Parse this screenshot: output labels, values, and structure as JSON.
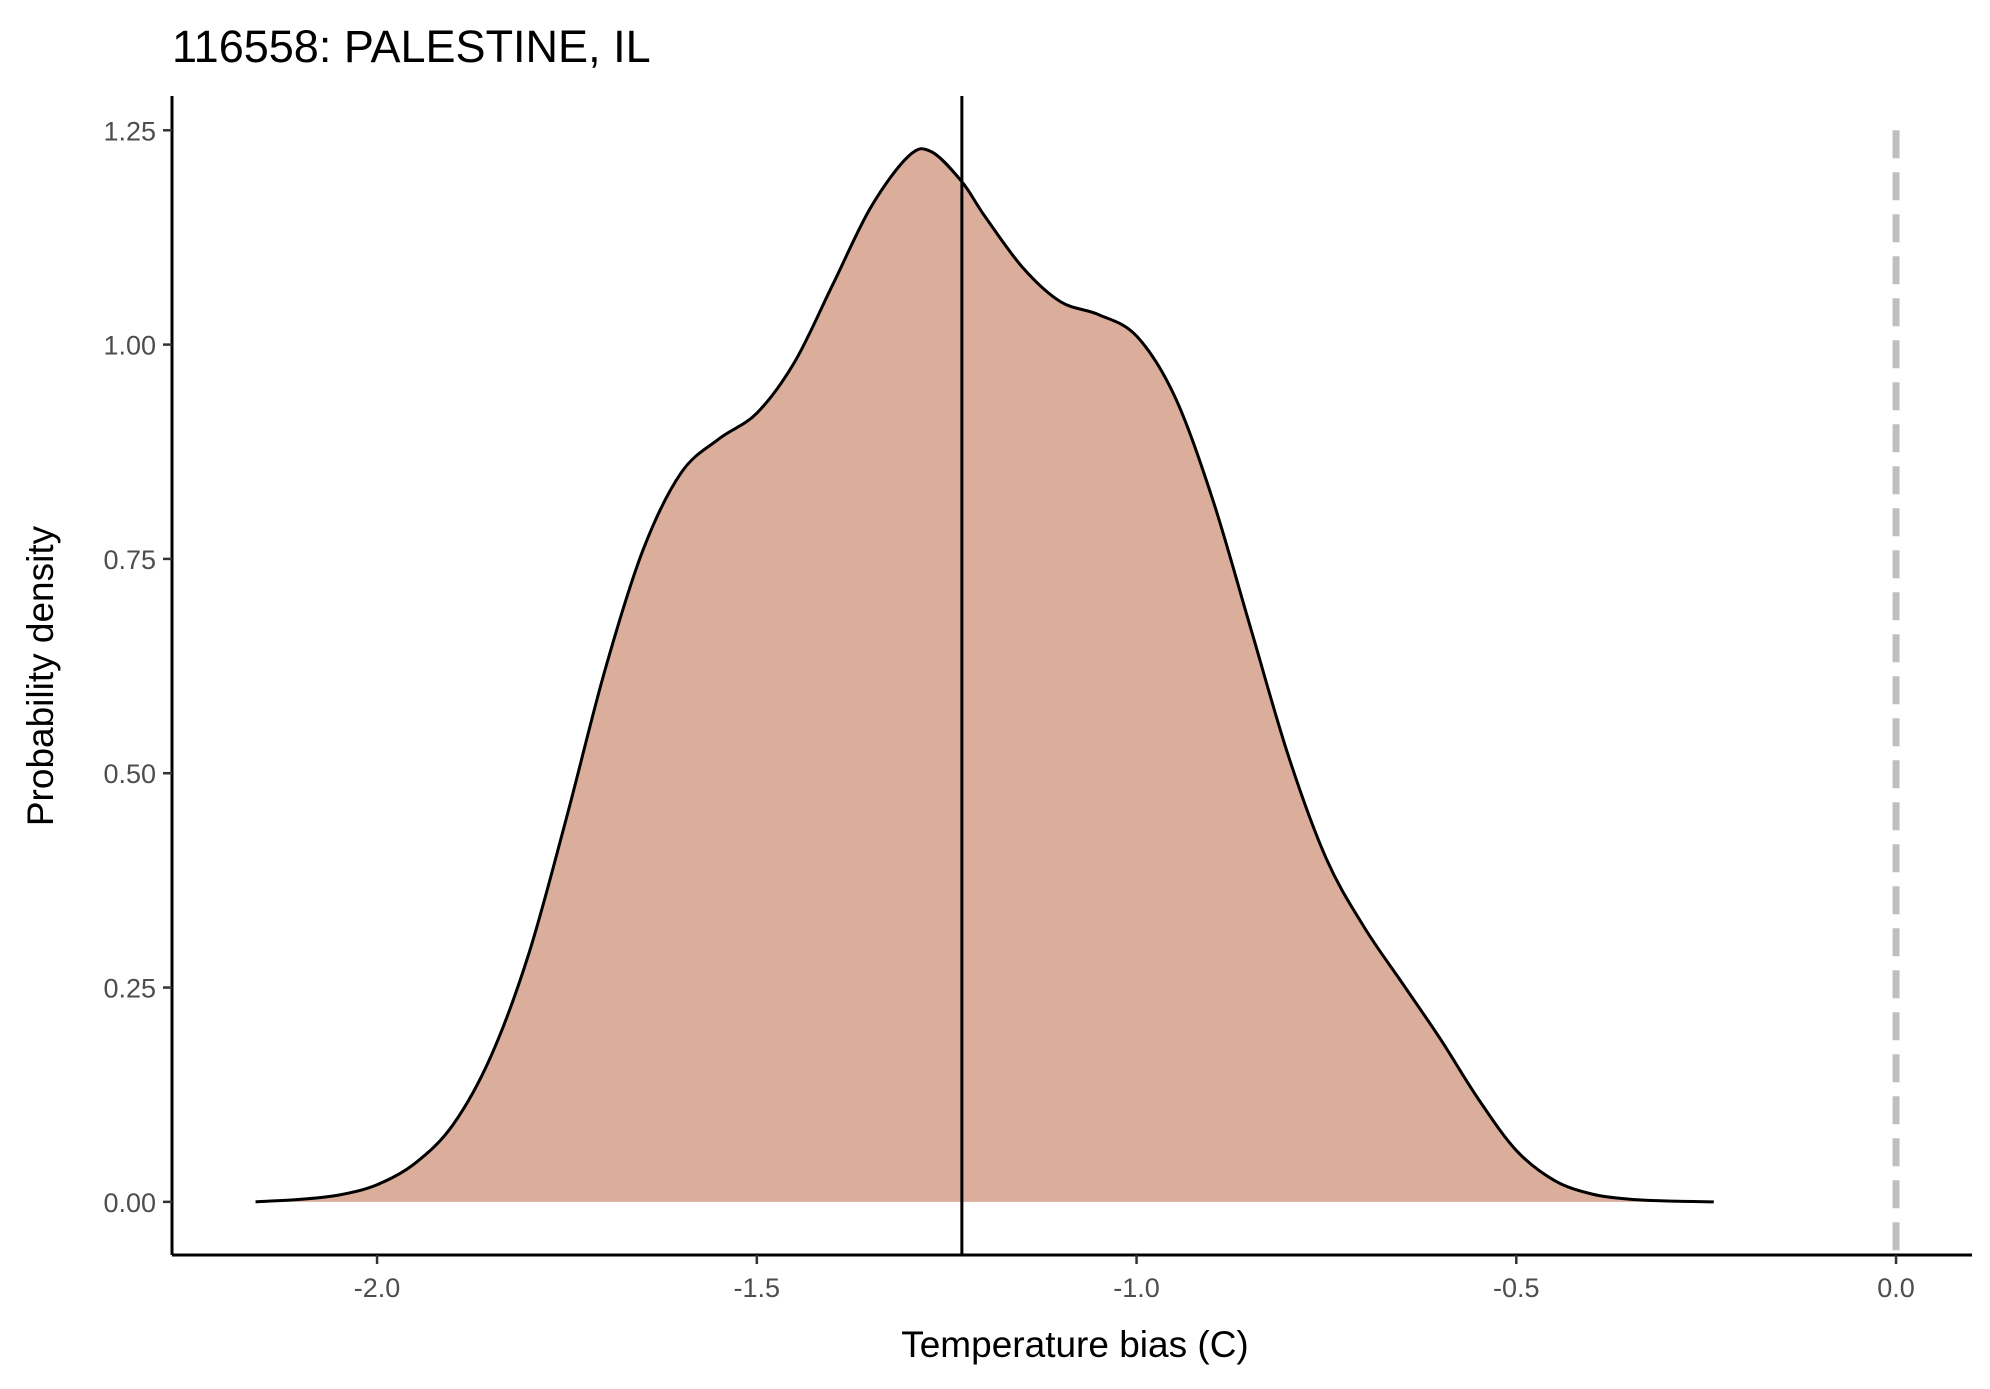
{
  "chart_data": {
    "type": "area",
    "title": "116558: PALESTINE, IL",
    "xlabel": "Temperature bias (C)",
    "ylabel": "Probability density",
    "xlim": [
      -2.27,
      0.1
    ],
    "ylim": [
      -0.062,
      1.29
    ],
    "x_ticks": [
      -2.0,
      -1.5,
      -1.0,
      -0.5,
      0.0
    ],
    "x_tick_labels": [
      "-2.0",
      "-1.5",
      "-1.0",
      "-0.5",
      "0.0"
    ],
    "y_ticks": [
      0.0,
      0.25,
      0.5,
      0.75,
      1.0,
      1.25
    ],
    "y_tick_labels": [
      "0.00",
      "0.25",
      "0.50",
      "0.75",
      "1.00",
      "1.25"
    ],
    "grid": false,
    "legend": "none",
    "series": [
      {
        "values": [
          {
            "x": -2.16,
            "y": 0.0
          },
          {
            "x": -2.1,
            "y": 0.003
          },
          {
            "x": -2.05,
            "y": 0.008
          },
          {
            "x": -2.0,
            "y": 0.02
          },
          {
            "x": -1.95,
            "y": 0.045
          },
          {
            "x": -1.9,
            "y": 0.09
          },
          {
            "x": -1.85,
            "y": 0.17
          },
          {
            "x": -1.8,
            "y": 0.29
          },
          {
            "x": -1.75,
            "y": 0.45
          },
          {
            "x": -1.7,
            "y": 0.62
          },
          {
            "x": -1.65,
            "y": 0.76
          },
          {
            "x": -1.6,
            "y": 0.85
          },
          {
            "x": -1.55,
            "y": 0.89
          },
          {
            "x": -1.5,
            "y": 0.92
          },
          {
            "x": -1.45,
            "y": 0.98
          },
          {
            "x": -1.4,
            "y": 1.07
          },
          {
            "x": -1.35,
            "y": 1.16
          },
          {
            "x": -1.3,
            "y": 1.22
          },
          {
            "x": -1.27,
            "y": 1.225
          },
          {
            "x": -1.23,
            "y": 1.19
          },
          {
            "x": -1.2,
            "y": 1.15
          },
          {
            "x": -1.15,
            "y": 1.09
          },
          {
            "x": -1.1,
            "y": 1.05
          },
          {
            "x": -1.05,
            "y": 1.035
          },
          {
            "x": -1.0,
            "y": 1.01
          },
          {
            "x": -0.95,
            "y": 0.94
          },
          {
            "x": -0.9,
            "y": 0.82
          },
          {
            "x": -0.85,
            "y": 0.67
          },
          {
            "x": -0.8,
            "y": 0.52
          },
          {
            "x": -0.75,
            "y": 0.4
          },
          {
            "x": -0.7,
            "y": 0.32
          },
          {
            "x": -0.65,
            "y": 0.255
          },
          {
            "x": -0.6,
            "y": 0.19
          },
          {
            "x": -0.55,
            "y": 0.12
          },
          {
            "x": -0.5,
            "y": 0.06
          },
          {
            "x": -0.45,
            "y": 0.025
          },
          {
            "x": -0.4,
            "y": 0.009
          },
          {
            "x": -0.35,
            "y": 0.003
          },
          {
            "x": -0.3,
            "y": 0.001
          },
          {
            "x": -0.24,
            "y": 0.0
          }
        ],
        "fill_color": "#dbad9b",
        "line_color": "#000000"
      }
    ],
    "vertical_lines": [
      {
        "x": -1.23,
        "style": "solid",
        "color": "#000000"
      },
      {
        "x": 0.0,
        "style": "dashed",
        "color": "#bfbfbf"
      }
    ]
  }
}
